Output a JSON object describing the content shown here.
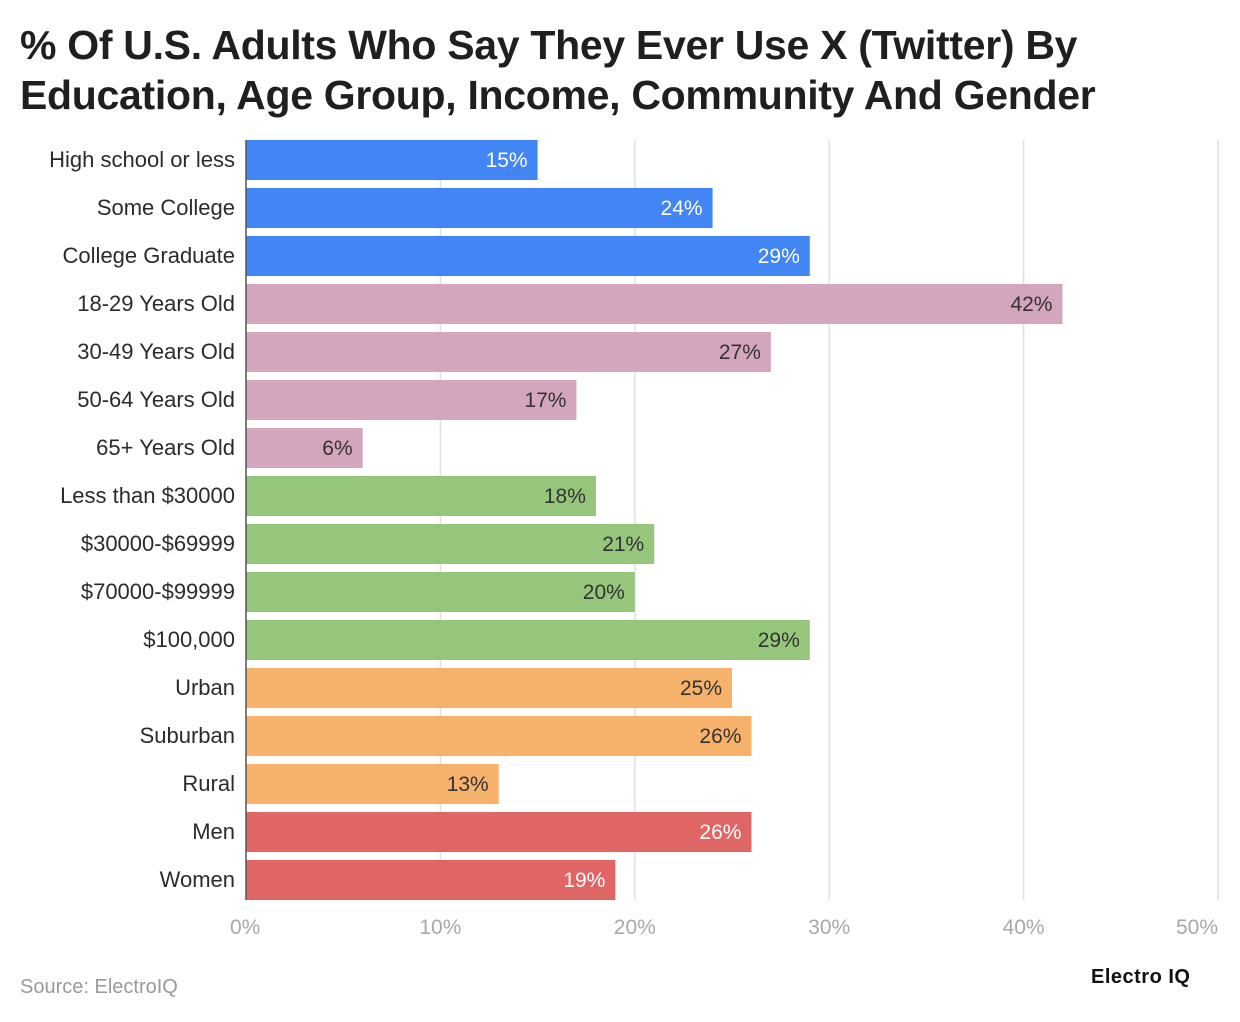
{
  "chart_data": {
    "type": "bar",
    "orientation": "horizontal",
    "title_lines": [
      "% Of U.S. Adults Who Say They Ever Use X (Twitter) By",
      "Education, Age Group, Income, Community And Gender"
    ],
    "categories": [
      "High school or less",
      "Some College",
      "College Graduate",
      "18-29 Years Old",
      "30-49 Years Old",
      "50-64 Years Old",
      "65+ Years Old",
      "Less than $30000",
      "$30000-$69999",
      "$70000-$99999",
      "$100,000",
      "Urban",
      "Suburban",
      "Rural",
      "Men",
      "Women"
    ],
    "values": [
      15,
      24,
      29,
      42,
      27,
      17,
      6,
      18,
      21,
      20,
      29,
      25,
      26,
      13,
      26,
      19
    ],
    "value_labels": [
      "15%",
      "24%",
      "29%",
      "42%",
      "27%",
      "17%",
      "6%",
      "18%",
      "21%",
      "20%",
      "29%",
      "25%",
      "26%",
      "13%",
      "26%",
      "19%"
    ],
    "groups": [
      "education",
      "education",
      "education",
      "age",
      "age",
      "age",
      "age",
      "income",
      "income",
      "income",
      "income",
      "community",
      "community",
      "community",
      "gender",
      "gender"
    ],
    "group_colors": {
      "education": "#4285f4",
      "age": "#d4a6bd",
      "income": "#96c67c",
      "community": "#f6b26b",
      "gender": "#e06666"
    },
    "label_colors": {
      "education": "#ffffff",
      "age": "#333333",
      "income": "#333333",
      "community": "#333333",
      "gender": "#ffffff"
    },
    "xlim": [
      0,
      50
    ],
    "xticks": [
      0,
      10,
      20,
      30,
      40,
      50
    ],
    "xtick_labels": [
      "0%",
      "10%",
      "20%",
      "30%",
      "40%",
      "50%"
    ],
    "grid": true
  },
  "footer": {
    "source": "Source: ElectroIQ",
    "brand": "Electro IQ"
  }
}
